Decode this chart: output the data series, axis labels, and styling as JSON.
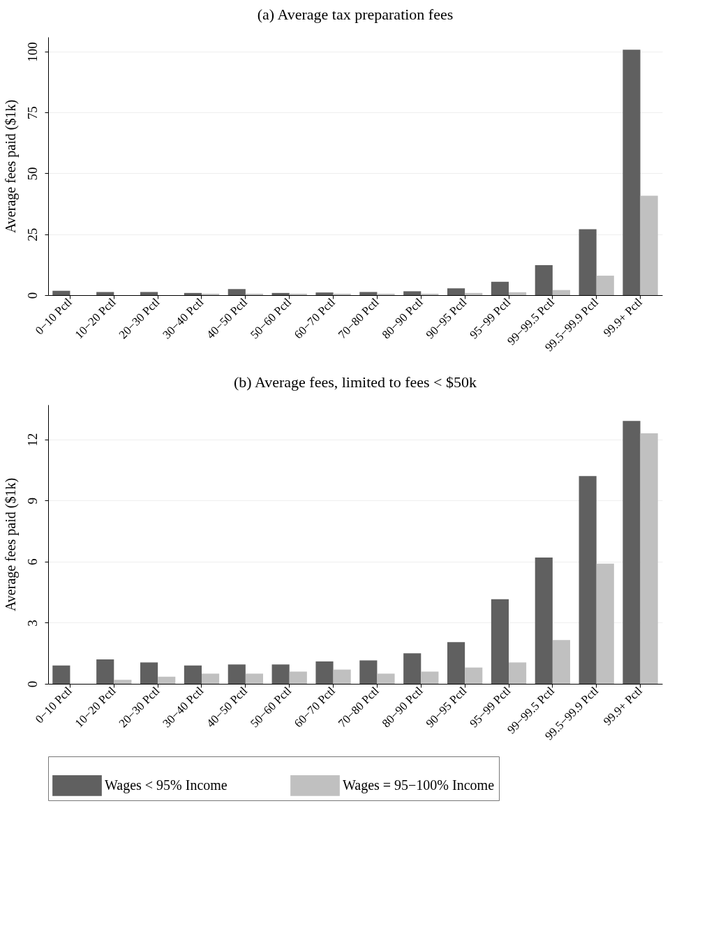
{
  "chart_data": [
    {
      "type": "bar",
      "title": "(a)  Average tax preparation fees",
      "ylabel": "Average fees paid ($1k)",
      "categories": [
        "0−10 Pctl",
        "10−20 Pctl",
        "20−30 Pctl",
        "30−40 Pctl",
        "40−50 Pctl",
        "50−60 Pctl",
        "60−70 Pctl",
        "70−80 Pctl",
        "80−90 Pctl",
        "90−95 Pctl",
        "95−99 Pctl",
        "99−99.5 Pctl",
        "99.5−99.9 Pctl",
        "99.9+ Pctl"
      ],
      "series": [
        {
          "name": "Wages < 95% Income",
          "color": "#606060",
          "values": [
            1.8,
            1.3,
            1.3,
            0.9,
            2.5,
            0.9,
            1.1,
            1.3,
            1.6,
            2.8,
            5.5,
            12.3,
            27.1,
            100.8
          ]
        },
        {
          "name": "Wages = 95−100% Income",
          "color": "#c0c0c0",
          "values": [
            null,
            null,
            null,
            0.6,
            0.6,
            0.6,
            0.6,
            0.6,
            0.6,
            0.9,
            1.2,
            2.1,
            8,
            40.8
          ]
        }
      ],
      "ylim": [
        0,
        106
      ],
      "yticks": [
        0,
        25,
        50,
        75,
        100
      ],
      "grid": "y",
      "legend": "bottom"
    },
    {
      "type": "bar",
      "title": "(b)  Average fees, limited to fees < $50k",
      "ylabel": "Average fees paid ($1k)",
      "categories": [
        "0−10 Pctl",
        "10−20 Pctl",
        "20−30 Pctl",
        "30−40 Pctl",
        "40−50 Pctl",
        "50−60 Pctl",
        "60−70 Pctl",
        "70−80 Pctl",
        "80−90 Pctl",
        "90−95 Pctl",
        "95−99 Pctl",
        "99−99.5 Pctl",
        "99.5−99.9 Pctl",
        "99.9+ Pctl"
      ],
      "series": [
        {
          "name": "Wages < 95% Income",
          "color": "#606060",
          "values": [
            0.9,
            1.2,
            1.05,
            0.9,
            0.95,
            0.95,
            1.1,
            1.15,
            1.5,
            2.05,
            4.15,
            6.2,
            10.2,
            12.9
          ]
        },
        {
          "name": "Wages = 95−100% Income",
          "color": "#c0c0c0",
          "values": [
            null,
            0.2,
            0.35,
            0.5,
            0.5,
            0.6,
            0.7,
            0.5,
            0.6,
            0.8,
            1.05,
            2.15,
            5.9,
            12.3
          ]
        }
      ],
      "ylim": [
        0,
        13.7
      ],
      "yticks": [
        0,
        3,
        6,
        9,
        12
      ],
      "grid": "y",
      "legend": "bottom"
    }
  ]
}
